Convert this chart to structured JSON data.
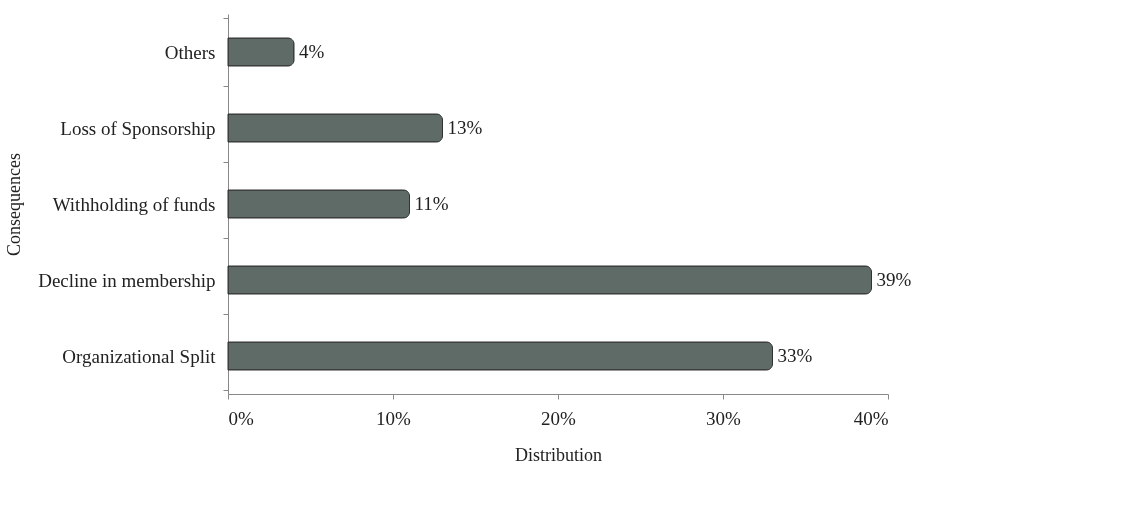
{
  "chart_data": {
    "type": "bar",
    "orientation": "horizontal",
    "categories": [
      "Others",
      "Loss of Sponsorship",
      "Withholding of funds",
      "Decline in membership",
      "Organizational Split"
    ],
    "values": [
      4,
      13,
      11,
      39,
      33
    ],
    "value_labels": [
      "4%",
      "13%",
      "11%",
      "39%",
      "33%"
    ],
    "color": "#5e6b67",
    "xlabel": "Distribution",
    "ylabel": "Consequences",
    "xlim": [
      0,
      40
    ],
    "xticks": [
      {
        "value": 0,
        "label": "0%"
      },
      {
        "value": 10,
        "label": "10%"
      },
      {
        "value": 20,
        "label": "20%"
      },
      {
        "value": 30,
        "label": "30%"
      },
      {
        "value": 40,
        "label": "40%"
      }
    ],
    "grid": false
  }
}
